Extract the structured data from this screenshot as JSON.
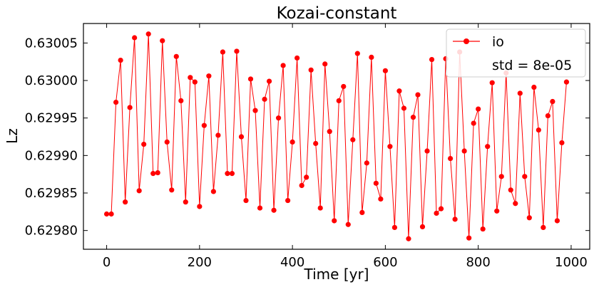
{
  "chart_data": {
    "type": "line",
    "title": "Kozai-constant",
    "xlabel": "Time [yr]",
    "ylabel": "Lz",
    "xlim": [
      -50,
      1040
    ],
    "ylim": [
      0.629775,
      0.630076
    ],
    "x_ticks": [
      0,
      200,
      400,
      600,
      800,
      1000
    ],
    "y_ticks": [
      0.6298,
      0.62985,
      0.6299,
      0.62995,
      0.63,
      0.63005
    ],
    "x_tick_labels": [
      "0",
      "200",
      "400",
      "600",
      "800",
      "1000"
    ],
    "y_tick_labels": [
      "0.62980",
      "0.62985",
      "0.62990",
      "0.62995",
      "0.63000",
      "0.63005"
    ],
    "grid": false,
    "legend": {
      "position": "top-right",
      "entries": [
        "io"
      ],
      "note": "std = 8e-05"
    },
    "colors": {
      "series": "#ff0000",
      "axes": "#000000"
    },
    "series": [
      {
        "name": "io",
        "marker": "circle",
        "x": [
          0,
          10,
          20,
          30,
          40,
          50,
          60,
          70,
          80,
          90,
          100,
          110,
          120,
          130,
          140,
          150,
          160,
          170,
          180,
          190,
          200,
          210,
          220,
          230,
          240,
          250,
          260,
          270,
          280,
          290,
          300,
          310,
          320,
          330,
          340,
          350,
          360,
          370,
          380,
          390,
          400,
          410,
          420,
          430,
          440,
          450,
          460,
          470,
          480,
          490,
          500,
          510,
          520,
          530,
          540,
          550,
          560,
          570,
          580,
          590,
          600,
          610,
          620,
          630,
          640,
          650,
          660,
          670,
          680,
          690,
          700,
          710,
          720,
          730,
          740,
          750,
          760,
          770,
          780,
          790,
          800,
          810,
          820,
          830,
          840,
          850,
          860,
          870,
          880,
          890,
          900,
          910,
          920,
          930,
          940,
          950,
          960,
          970,
          980,
          990
        ],
        "y": [
          0.629822,
          0.629822,
          0.629971,
          0.630027,
          0.629838,
          0.629964,
          0.630057,
          0.629853,
          0.629915,
          0.630062,
          0.629876,
          0.629877,
          0.630053,
          0.629918,
          0.629854,
          0.630032,
          0.629973,
          0.629838,
          0.630004,
          0.629998,
          0.629832,
          0.62994,
          0.630006,
          0.629852,
          0.629927,
          0.630038,
          0.629876,
          0.629876,
          0.630039,
          0.629925,
          0.62984,
          0.630002,
          0.62996,
          0.62983,
          0.629975,
          0.629999,
          0.629827,
          0.62995,
          0.63002,
          0.62984,
          0.629918,
          0.63003,
          0.62986,
          0.629871,
          0.630014,
          0.629916,
          0.62983,
          0.630022,
          0.629932,
          0.629813,
          0.629973,
          0.629992,
          0.629808,
          0.629921,
          0.630036,
          0.629824,
          0.62989,
          0.630031,
          0.629863,
          0.629842,
          0.630013,
          0.629912,
          0.629804,
          0.629986,
          0.629963,
          0.629789,
          0.629951,
          0.629981,
          0.629805,
          0.629906,
          0.630028,
          0.629823,
          0.629829,
          0.630029,
          0.629896,
          0.629815,
          0.630038,
          0.629906,
          0.62979,
          0.629943,
          0.629962,
          0.629802,
          0.629912,
          0.629997,
          0.629826,
          0.629872,
          0.63001,
          0.629854,
          0.629836,
          0.629983,
          0.629872,
          0.629817,
          0.629991,
          0.629934,
          0.629804,
          0.629953,
          0.629972,
          0.629813,
          0.629917,
          0.629998
        ]
      }
    ]
  }
}
